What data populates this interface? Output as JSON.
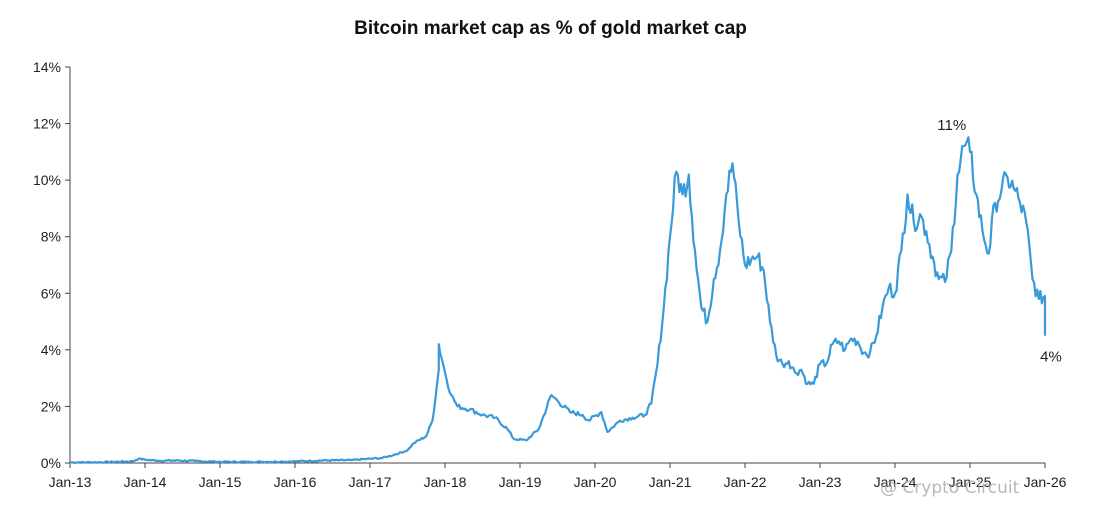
{
  "chart_data": {
    "type": "line",
    "title": "Bitcoin market cap as % of gold market cap",
    "xlabel": "",
    "ylabel": "",
    "x_tick_labels": [
      "Jan-13",
      "Jan-14",
      "Jan-15",
      "Jan-16",
      "Jan-17",
      "Jan-18",
      "Jan-19",
      "Jan-20",
      "Jan-21",
      "Jan-22",
      "Jan-23",
      "Jan-24",
      "Jan-25",
      "Jan-26"
    ],
    "y_tick_labels": [
      "0%",
      "2%",
      "4%",
      "6%",
      "8%",
      "10%",
      "12%",
      "14%"
    ],
    "ylim": [
      0,
      14
    ],
    "xlim": [
      "2013-01",
      "2026-01"
    ],
    "grid": false,
    "line_color": "#3a9ad9",
    "series": [
      {
        "name": "",
        "points": [
          [
            "2013-01",
            0.02
          ],
          [
            "2013-06",
            0.03
          ],
          [
            "2013-11",
            0.06
          ],
          [
            "2013-12",
            0.15
          ],
          [
            "2014-01",
            0.12
          ],
          [
            "2014-03",
            0.08
          ],
          [
            "2014-06",
            0.09
          ],
          [
            "2014-09",
            0.07
          ],
          [
            "2015-01",
            0.04
          ],
          [
            "2015-06",
            0.04
          ],
          [
            "2015-11",
            0.05
          ],
          [
            "2016-01",
            0.06
          ],
          [
            "2016-06",
            0.09
          ],
          [
            "2016-10",
            0.1
          ],
          [
            "2017-01",
            0.15
          ],
          [
            "2017-03",
            0.18
          ],
          [
            "2017-05",
            0.3
          ],
          [
            "2017-07",
            0.45
          ],
          [
            "2017-08",
            0.7
          ],
          [
            "2017-10",
            0.95
          ],
          [
            "2017-11",
            1.5
          ],
          [
            "2017-12",
            3.3
          ],
          [
            "2017-12",
            4.2
          ],
          [
            "2018-01",
            3.2
          ],
          [
            "2018-02",
            2.4
          ],
          [
            "2018-03",
            2.0
          ],
          [
            "2018-05",
            1.9
          ],
          [
            "2018-07",
            1.7
          ],
          [
            "2018-09",
            1.6
          ],
          [
            "2018-11",
            1.2
          ],
          [
            "2018-12",
            0.85
          ],
          [
            "2019-02",
            0.8
          ],
          [
            "2019-04",
            1.2
          ],
          [
            "2019-06",
            2.4
          ],
          [
            "2019-07",
            2.2
          ],
          [
            "2019-09",
            1.8
          ],
          [
            "2019-11",
            1.7
          ],
          [
            "2019-12",
            1.5
          ],
          [
            "2020-02",
            1.8
          ],
          [
            "2020-03",
            1.1
          ],
          [
            "2020-05",
            1.5
          ],
          [
            "2020-07",
            1.6
          ],
          [
            "2020-09",
            1.7
          ],
          [
            "2020-10",
            2.1
          ],
          [
            "2020-11",
            3.5
          ],
          [
            "2020-12",
            5.5
          ],
          [
            "2021-01",
            8.0
          ],
          [
            "2021-02",
            10.3
          ],
          [
            "2021-03",
            9.5
          ],
          [
            "2021-04",
            10.2
          ],
          [
            "2021-05",
            7.5
          ],
          [
            "2021-06",
            5.5
          ],
          [
            "2021-07",
            5.0
          ],
          [
            "2021-08",
            6.5
          ],
          [
            "2021-09",
            7.5
          ],
          [
            "2021-10",
            9.5
          ],
          [
            "2021-11",
            10.6
          ],
          [
            "2021-12",
            8.5
          ],
          [
            "2022-01",
            7.0
          ],
          [
            "2022-02",
            7.2
          ],
          [
            "2022-03",
            7.3
          ],
          [
            "2022-04",
            6.8
          ],
          [
            "2022-05",
            5.0
          ],
          [
            "2022-06",
            3.8
          ],
          [
            "2022-07",
            3.5
          ],
          [
            "2022-08",
            3.6
          ],
          [
            "2022-09",
            3.2
          ],
          [
            "2022-10",
            3.3
          ],
          [
            "2022-11",
            2.8
          ],
          [
            "2022-12",
            2.8
          ],
          [
            "2023-01",
            3.5
          ],
          [
            "2023-02",
            3.5
          ],
          [
            "2023-03",
            4.2
          ],
          [
            "2023-04",
            4.3
          ],
          [
            "2023-05",
            4.0
          ],
          [
            "2023-06",
            4.4
          ],
          [
            "2023-07",
            4.3
          ],
          [
            "2023-08",
            3.9
          ],
          [
            "2023-09",
            3.9
          ],
          [
            "2023-10",
            4.5
          ],
          [
            "2023-11",
            5.5
          ],
          [
            "2023-12",
            6.2
          ],
          [
            "2024-01",
            6.0
          ],
          [
            "2024-02",
            7.5
          ],
          [
            "2024-03",
            9.5
          ],
          [
            "2024-04",
            8.5
          ],
          [
            "2024-05",
            8.8
          ],
          [
            "2024-06",
            8.2
          ],
          [
            "2024-07",
            7.3
          ],
          [
            "2024-08",
            6.5
          ],
          [
            "2024-09",
            6.4
          ],
          [
            "2024-10",
            7.5
          ],
          [
            "2024-11",
            10.2
          ],
          [
            "2024-12",
            11.2
          ],
          [
            "2025-01",
            11.0
          ],
          [
            "2025-02",
            9.5
          ],
          [
            "2025-03",
            8.2
          ],
          [
            "2025-04",
            7.4
          ],
          [
            "2025-05",
            9.2
          ],
          [
            "2025-06",
            9.6
          ],
          [
            "2025-07",
            10.1
          ],
          [
            "2025-08",
            9.7
          ],
          [
            "2025-09",
            9.2
          ],
          [
            "2025-10",
            8.5
          ],
          [
            "2025-11",
            6.5
          ],
          [
            "2025-12",
            5.8
          ],
          [
            "2026-01",
            5.9
          ],
          [
            "2026-01",
            4.5
          ]
        ]
      }
    ],
    "annotations": [
      {
        "text": "11%",
        "x": "2024-12",
        "y": 11.2
      },
      {
        "text": "4%",
        "x": "2026-01",
        "y": 4.5
      }
    ]
  },
  "watermark": "@ Crypto Circuit"
}
